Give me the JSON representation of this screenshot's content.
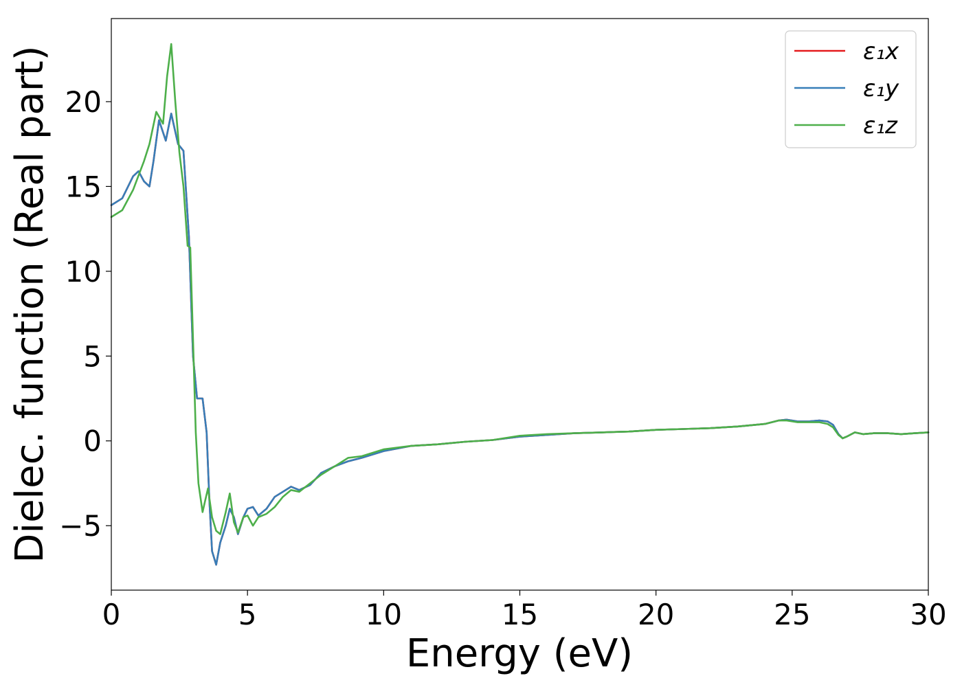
{
  "chart_data": {
    "type": "line",
    "title": "",
    "xlabel": "Energy (eV)",
    "ylabel": "Dielec. function (Real part)",
    "xlim": [
      0,
      30
    ],
    "ylim": [
      -8.8,
      24.9
    ],
    "xticks": [
      0,
      5,
      10,
      15,
      20,
      25,
      30
    ],
    "xtick_labels": [
      "0",
      "5",
      "10",
      "15",
      "20",
      "25",
      "30"
    ],
    "yticks": [
      -5,
      0,
      5,
      10,
      15,
      20
    ],
    "ytick_labels": [
      "−5",
      "0",
      "5",
      "10",
      "15",
      "20"
    ],
    "grid": false,
    "legend_position": "top-right",
    "series": [
      {
        "name": "ε₁x",
        "color": "#e41a1c",
        "x": [
          0,
          0.4,
          0.8,
          1.0,
          1.2,
          1.4,
          1.55,
          1.75,
          2.0,
          2.2,
          2.45,
          2.65,
          2.85,
          3.0,
          3.15,
          3.35,
          3.5,
          3.6,
          3.7,
          3.85,
          4.0,
          4.2,
          4.35,
          4.5,
          4.65,
          4.85,
          5.0,
          5.2,
          5.4,
          5.7,
          6.0,
          6.3,
          6.6,
          6.9,
          7.3,
          7.7,
          8.2,
          8.7,
          9.2,
          10.0,
          11.0,
          12.0,
          13.0,
          14.0,
          15.0,
          16.0,
          17.0,
          18.0,
          19.0,
          20.0,
          21.0,
          22.0,
          23.0,
          24.0,
          24.5,
          24.8,
          25.2,
          25.6,
          26.0,
          26.3,
          26.5,
          26.7,
          26.85,
          27.0,
          27.3,
          27.6,
          28.0,
          28.5,
          29.0,
          29.5,
          30.0
        ],
        "values": [
          13.9,
          14.3,
          15.6,
          15.9,
          15.3,
          15.0,
          16.5,
          18.9,
          17.7,
          19.3,
          17.5,
          17.1,
          12.0,
          5.0,
          2.5,
          2.5,
          0.5,
          -3.5,
          -6.5,
          -7.3,
          -6.0,
          -5.0,
          -4.0,
          -4.5,
          -5.5,
          -4.5,
          -4.0,
          -3.9,
          -4.4,
          -4.0,
          -3.3,
          -3.0,
          -2.7,
          -2.9,
          -2.6,
          -1.9,
          -1.5,
          -1.2,
          -1.0,
          -0.6,
          -0.3,
          -0.2,
          -0.05,
          0.05,
          0.25,
          0.35,
          0.45,
          0.5,
          0.55,
          0.65,
          0.7,
          0.75,
          0.85,
          1.0,
          1.2,
          1.25,
          1.15,
          1.15,
          1.2,
          1.15,
          0.95,
          0.4,
          0.15,
          0.25,
          0.5,
          0.4,
          0.45,
          0.45,
          0.4,
          0.45,
          0.5
        ]
      },
      {
        "name": "ε₁y",
        "color": "#377eb8",
        "x": [
          0,
          0.4,
          0.8,
          1.0,
          1.2,
          1.4,
          1.55,
          1.75,
          2.0,
          2.2,
          2.45,
          2.65,
          2.85,
          3.0,
          3.15,
          3.35,
          3.5,
          3.6,
          3.7,
          3.85,
          4.0,
          4.2,
          4.35,
          4.5,
          4.65,
          4.85,
          5.0,
          5.2,
          5.4,
          5.7,
          6.0,
          6.3,
          6.6,
          6.9,
          7.3,
          7.7,
          8.2,
          8.7,
          9.2,
          10.0,
          11.0,
          12.0,
          13.0,
          14.0,
          15.0,
          16.0,
          17.0,
          18.0,
          19.0,
          20.0,
          21.0,
          22.0,
          23.0,
          24.0,
          24.5,
          24.8,
          25.2,
          25.6,
          26.0,
          26.3,
          26.5,
          26.7,
          26.85,
          27.0,
          27.3,
          27.6,
          28.0,
          28.5,
          29.0,
          29.5,
          30.0
        ],
        "values": [
          13.9,
          14.3,
          15.6,
          15.9,
          15.3,
          15.0,
          16.5,
          18.9,
          17.7,
          19.3,
          17.5,
          17.1,
          12.0,
          5.0,
          2.5,
          2.5,
          0.5,
          -3.5,
          -6.5,
          -7.3,
          -6.0,
          -5.0,
          -4.0,
          -4.5,
          -5.5,
          -4.5,
          -4.0,
          -3.9,
          -4.4,
          -4.0,
          -3.3,
          -3.0,
          -2.7,
          -2.9,
          -2.6,
          -1.9,
          -1.5,
          -1.2,
          -1.0,
          -0.6,
          -0.3,
          -0.2,
          -0.05,
          0.05,
          0.25,
          0.35,
          0.45,
          0.5,
          0.55,
          0.65,
          0.7,
          0.75,
          0.85,
          1.0,
          1.2,
          1.25,
          1.15,
          1.15,
          1.2,
          1.15,
          0.95,
          0.4,
          0.15,
          0.25,
          0.5,
          0.4,
          0.45,
          0.45,
          0.4,
          0.45,
          0.5
        ]
      },
      {
        "name": "ε₁z",
        "color": "#4daf4a",
        "x": [
          0,
          0.4,
          0.8,
          1.2,
          1.4,
          1.65,
          1.9,
          2.05,
          2.2,
          2.35,
          2.5,
          2.65,
          2.8,
          2.9,
          3.0,
          3.1,
          3.2,
          3.35,
          3.45,
          3.55,
          3.7,
          3.85,
          4.0,
          4.2,
          4.35,
          4.5,
          4.65,
          4.85,
          5.0,
          5.2,
          5.4,
          5.7,
          6.0,
          6.3,
          6.6,
          6.9,
          7.3,
          7.7,
          8.2,
          8.7,
          9.2,
          10.0,
          11.0,
          12.0,
          13.0,
          14.0,
          15.0,
          16.0,
          17.0,
          18.0,
          19.0,
          20.0,
          21.0,
          22.0,
          23.0,
          24.0,
          24.5,
          24.8,
          25.2,
          25.6,
          26.0,
          26.3,
          26.5,
          26.7,
          26.85,
          27.0,
          27.3,
          27.6,
          28.0,
          28.5,
          29.0,
          29.5,
          30.0
        ],
        "values": [
          13.2,
          13.6,
          14.8,
          16.5,
          17.5,
          19.4,
          18.7,
          21.5,
          23.4,
          20.0,
          17.0,
          15.0,
          11.5,
          11.4,
          6.0,
          0.5,
          -2.5,
          -4.2,
          -3.5,
          -2.8,
          -4.5,
          -5.3,
          -5.5,
          -4.2,
          -3.1,
          -4.8,
          -5.4,
          -4.5,
          -4.4,
          -5.0,
          -4.5,
          -4.3,
          -3.9,
          -3.3,
          -2.9,
          -3.0,
          -2.5,
          -2.0,
          -1.5,
          -1.0,
          -0.9,
          -0.5,
          -0.3,
          -0.2,
          -0.05,
          0.05,
          0.3,
          0.4,
          0.45,
          0.5,
          0.55,
          0.65,
          0.7,
          0.75,
          0.85,
          1.0,
          1.2,
          1.2,
          1.1,
          1.1,
          1.1,
          1.0,
          0.8,
          0.35,
          0.15,
          0.25,
          0.5,
          0.4,
          0.45,
          0.45,
          0.4,
          0.45,
          0.5
        ]
      }
    ]
  }
}
